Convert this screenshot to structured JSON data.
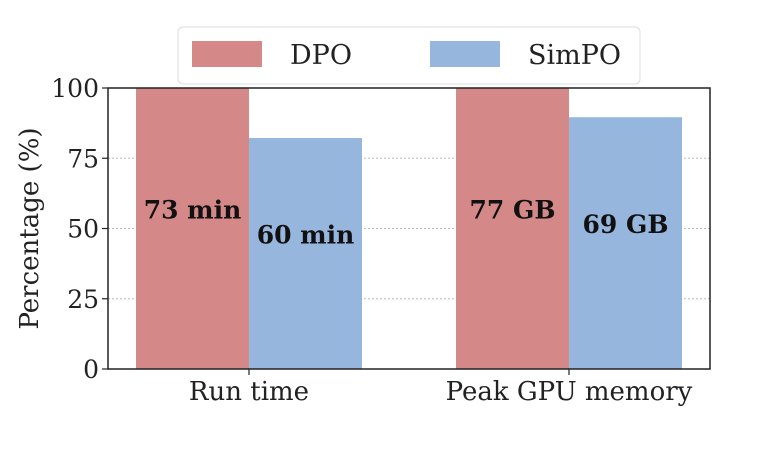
{
  "chart_data": {
    "type": "bar",
    "title": "",
    "xlabel": "",
    "ylabel": "Percentage (%)",
    "ylim": [
      0,
      100
    ],
    "yticks": [
      "0",
      "25",
      "50",
      "75",
      "100"
    ],
    "grid": "horizontal dotted",
    "legend_position": "top-center",
    "categories": [
      "Run time",
      "Peak GPU memory"
    ],
    "series": [
      {
        "name": "DPO",
        "color": "#d48888",
        "values": [
          100,
          100
        ],
        "labels": [
          "73 min",
          "77 GB"
        ]
      },
      {
        "name": "SimPO",
        "color": "#97b6de",
        "values": [
          82.2,
          89.6
        ],
        "labels": [
          "60 min",
          "69 GB"
        ]
      }
    ]
  }
}
